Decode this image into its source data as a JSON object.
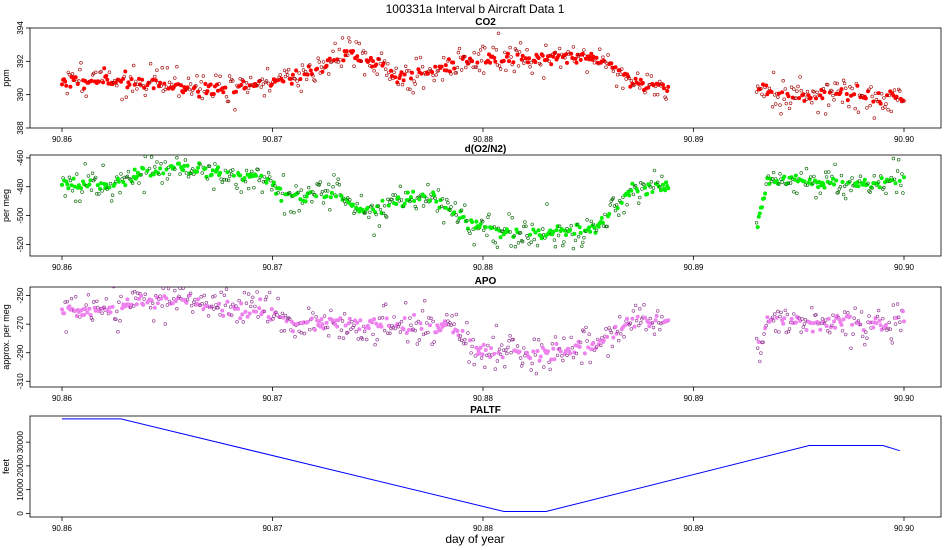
{
  "figure": {
    "title": "100331a   Interval b Aircraft Data 1",
    "xlabel": "day of year"
  },
  "chart_data": [
    {
      "type": "scatter",
      "title": "CO2",
      "ylabel": "ppm",
      "xlim": [
        90.86,
        90.9
      ],
      "ylim": [
        388,
        394
      ],
      "xticks": [
        "90.86",
        "90.87",
        "90.88",
        "90.89",
        "90.90"
      ],
      "yticks": [
        "388",
        "390",
        "392",
        "394"
      ],
      "color": "#ff0000",
      "edge_color": "#a00000",
      "series": [
        {
          "x": [
            90.86,
            90.862,
            90.864,
            90.866,
            90.868,
            90.87,
            90.872,
            90.8735,
            90.875,
            90.876,
            90.878,
            90.88,
            90.882,
            90.884,
            90.8855,
            90.887,
            90.8888
          ],
          "y": [
            390.8,
            390.9,
            390.7,
            390.4,
            390.3,
            390.8,
            391.4,
            392.6,
            391.8,
            391.0,
            391.6,
            392.1,
            392.2,
            392.3,
            392.2,
            390.9,
            390.3
          ]
        },
        {
          "x": [
            90.893,
            90.894,
            90.895,
            90.896,
            90.897,
            90.898,
            90.899,
            90.9
          ],
          "y": [
            390.4,
            390.1,
            389.8,
            390.0,
            390.1,
            389.9,
            389.8,
            389.8
          ]
        }
      ]
    },
    {
      "type": "scatter",
      "title": "d(O2/N2)",
      "ylabel": "per meg",
      "xlim": [
        90.86,
        90.9
      ],
      "ylim": [
        -528,
        -458
      ],
      "xticks": [
        "90.86",
        "90.87",
        "90.88",
        "90.89",
        "90.90"
      ],
      "yticks": [
        "-520",
        "-500",
        "-480",
        "-460"
      ],
      "color": "#00ee00",
      "edge_color": "#006400",
      "series": [
        {
          "x": [
            90.86,
            90.862,
            90.864,
            90.8655,
            90.868,
            90.8695,
            90.871,
            90.873,
            90.874,
            90.875,
            90.876,
            90.8775,
            90.8785,
            90.88,
            90.882,
            90.884,
            90.8855,
            90.887,
            90.8888
          ],
          "y": [
            -476,
            -479,
            -470,
            -466,
            -471,
            -473,
            -488,
            -486,
            -495,
            -498,
            -488,
            -486,
            -495,
            -510,
            -513,
            -512,
            -507,
            -483,
            -480
          ]
        },
        {
          "x": [
            90.893,
            90.8935,
            90.895,
            90.896,
            90.897,
            90.898,
            90.899,
            90.9
          ],
          "y": [
            -510,
            -477,
            -474,
            -478,
            -478,
            -479,
            -478,
            -474
          ]
        }
      ]
    },
    {
      "type": "scatter",
      "title": "APO",
      "ylabel": "approx. per meg",
      "xlim": [
        90.86,
        90.9
      ],
      "ylim": [
        -314,
        -244
      ],
      "xticks": [
        "90.86",
        "90.87",
        "90.88",
        "90.89",
        "90.90"
      ],
      "yticks": [
        "-310",
        "-290",
        "-270",
        "-250"
      ],
      "color": "#ee82ee",
      "edge_color": "#8b2f8b",
      "series": [
        {
          "x": [
            90.86,
            90.862,
            90.864,
            90.866,
            90.868,
            90.8695,
            90.871,
            90.873,
            90.875,
            90.877,
            90.8785,
            90.88,
            90.882,
            90.884,
            90.8855,
            90.887,
            90.8888
          ],
          "y": [
            -261,
            -262,
            -252,
            -254,
            -260,
            -260,
            -270,
            -270,
            -271,
            -271,
            -272,
            -290,
            -291,
            -289,
            -283,
            -268,
            -268
          ]
        },
        {
          "x": [
            90.893,
            90.8935,
            90.895,
            90.896,
            90.897,
            90.898,
            90.899,
            90.9
          ],
          "y": [
            -290,
            -266,
            -268,
            -271,
            -268,
            -270,
            -269,
            -266
          ]
        }
      ]
    },
    {
      "type": "line",
      "title": "PALTF",
      "ylabel": "feet",
      "xlim": [
        90.86,
        90.9
      ],
      "ylim": [
        -1500,
        41000
      ],
      "xticks": [
        "90.86",
        "90.87",
        "90.88",
        "90.89",
        "90.90"
      ],
      "yticks": [
        "0",
        "10000",
        "20000",
        "30000"
      ],
      "color": "#0000ff",
      "series": [
        {
          "x": [
            90.86,
            90.8628,
            90.881,
            90.883,
            90.8955,
            90.899,
            90.8998
          ],
          "y": [
            39800,
            39800,
            800,
            800,
            28600,
            28600,
            26400
          ]
        }
      ]
    }
  ]
}
